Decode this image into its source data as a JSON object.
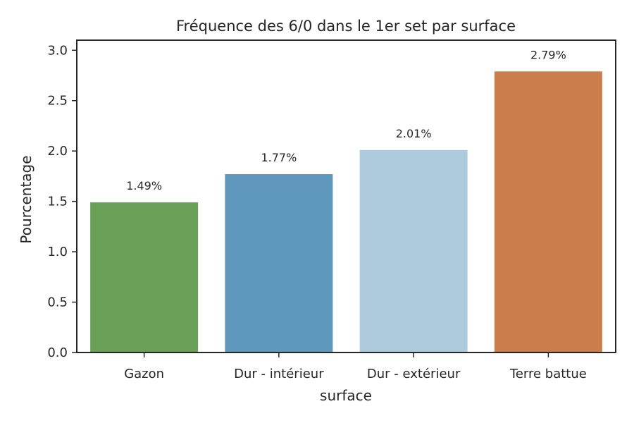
{
  "chart_data": {
    "type": "bar",
    "title": "Fréquence des 6/0 dans le 1er set par surface",
    "xlabel": "surface",
    "ylabel": "Pourcentage",
    "categories": [
      "Gazon",
      "Dur - intérieur",
      "Dur - extérieur",
      "Terre battue"
    ],
    "values": [
      1.49,
      1.77,
      2.01,
      2.79
    ],
    "data_labels": [
      "1.49%",
      "1.77%",
      "2.01%",
      "2.79%"
    ],
    "colors": [
      "#6a9f58",
      "#6097bc",
      "#aecbde",
      "#cb7e4c"
    ],
    "ylim": [
      0,
      3.1
    ],
    "yticks": [
      0.0,
      0.5,
      1.0,
      1.5,
      2.0,
      2.5,
      3.0
    ],
    "ytick_labels": [
      "0.0",
      "0.5",
      "1.0",
      "1.5",
      "2.0",
      "2.5",
      "3.0"
    ],
    "grid": false,
    "legend": "none"
  }
}
